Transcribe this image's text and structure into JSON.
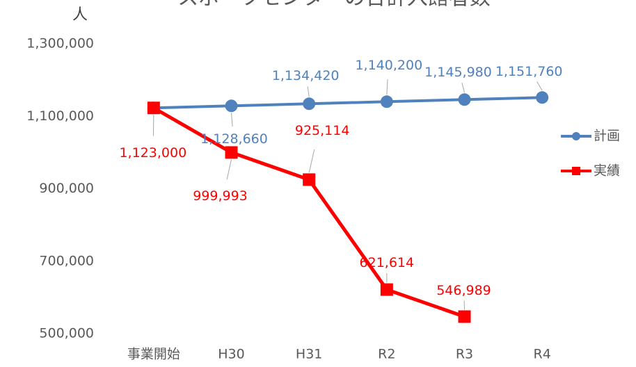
{
  "chart_data": {
    "type": "line",
    "title": "スポーツセンターの合計入館者数",
    "y_label": "人",
    "categories": [
      "事業開始",
      "H30",
      "H31",
      "R2",
      "R3",
      "R4"
    ],
    "series": [
      {
        "name": "計画",
        "color": "#4f81bd",
        "marker": "circle",
        "values": [
          1123000,
          1128660,
          1134420,
          1140200,
          1145980,
          1151760
        ],
        "value_labels": [
          null,
          "1,128,660",
          "1,134,420",
          "1,140,200",
          "1,145,980",
          "1,151,760"
        ]
      },
      {
        "name": "実績",
        "color": "#ff0000",
        "marker": "square",
        "values": [
          1123000,
          999993,
          925114,
          621614,
          546989,
          null
        ],
        "value_labels": [
          "1,123,000",
          "999,993",
          "925,114",
          "621,614",
          "546,989",
          null
        ]
      }
    ],
    "ylim": [
      500000,
      1300000
    ],
    "yticks": [
      {
        "value": 500000,
        "label": "500,000"
      },
      {
        "value": 700000,
        "label": "700,000"
      },
      {
        "value": 900000,
        "label": "900,000"
      },
      {
        "value": 1100000,
        "label": "1,100,000"
      },
      {
        "value": 1300000,
        "label": "1,300,000"
      }
    ],
    "grid": false,
    "legend": "right"
  }
}
